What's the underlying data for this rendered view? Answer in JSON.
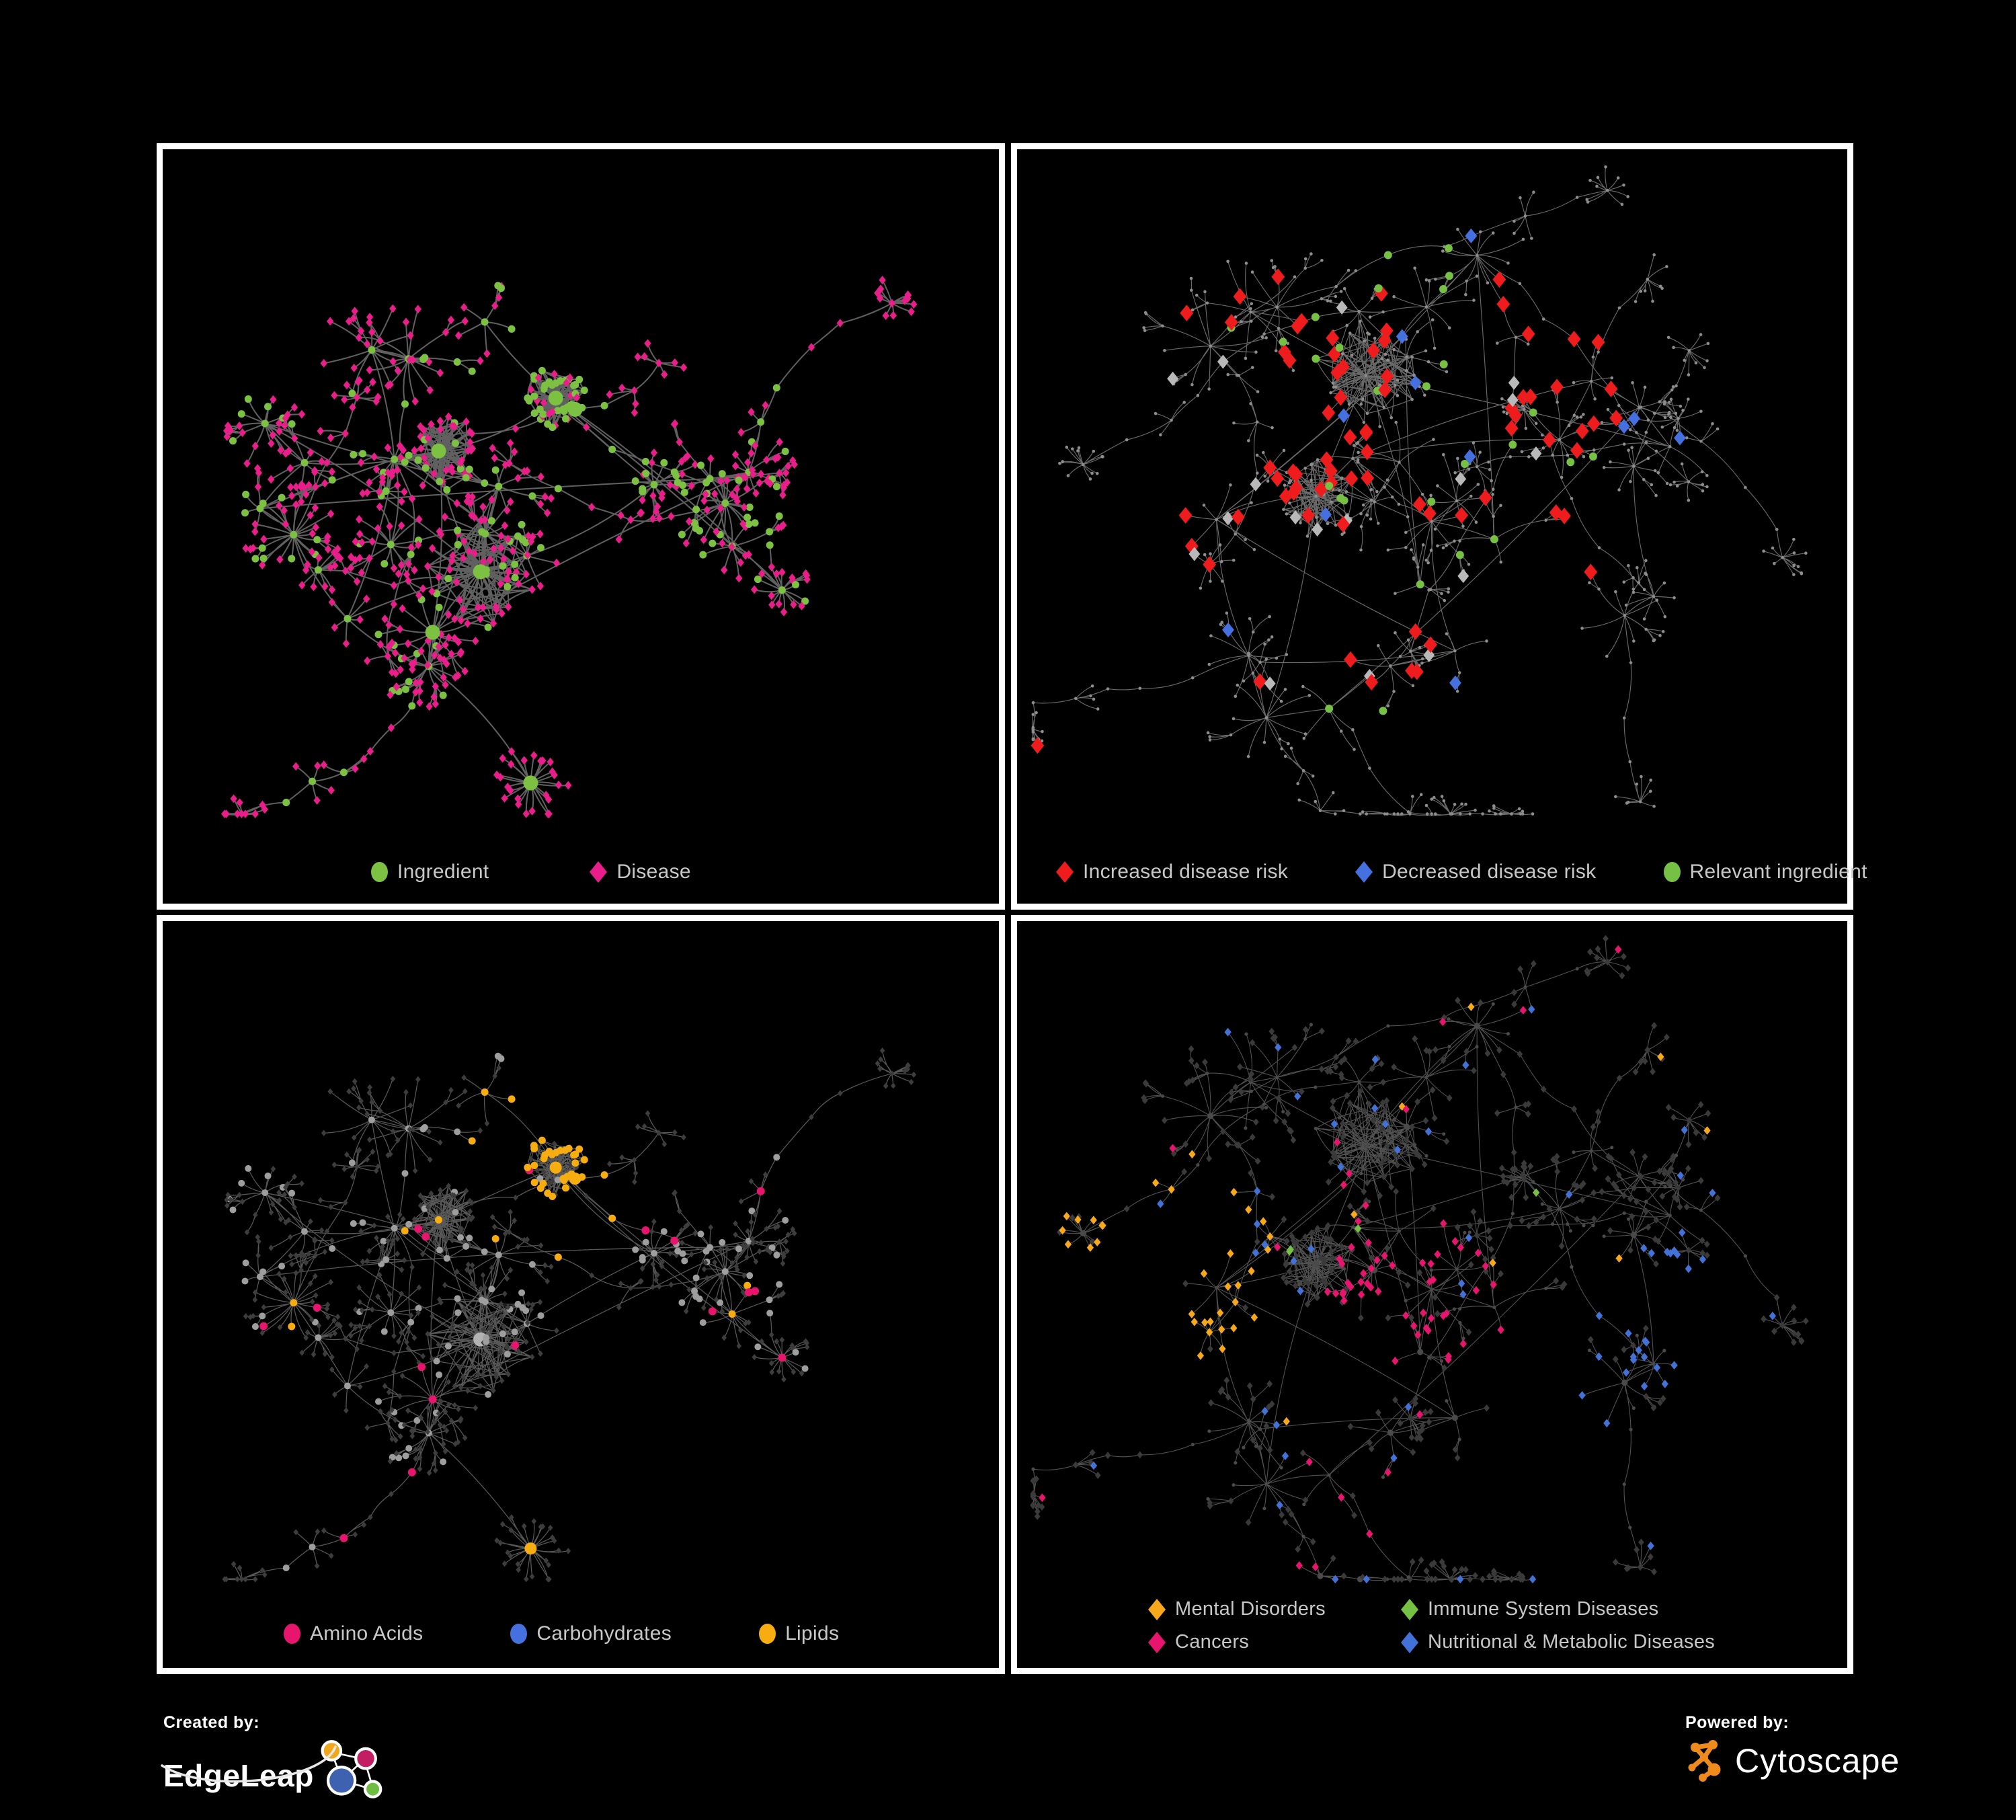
{
  "figure": {
    "background": "#000000",
    "panel_border_color": "#ffffff",
    "legend_text_color": "#c8c8c8"
  },
  "panels": [
    {
      "key": "ingredient-disease",
      "layout": "A",
      "style": "p1",
      "legend_items": [
        {
          "shape": "circle",
          "color": "#7cc142",
          "label": "Ingredient"
        },
        {
          "shape": "diamond",
          "color": "#e91e8a",
          "label": "Disease"
        }
      ]
    },
    {
      "key": "disease-risk",
      "layout": "B",
      "style": "p2",
      "legend_items": [
        {
          "shape": "diamond",
          "color": "#ee1c1c",
          "label": "Increased disease risk"
        },
        {
          "shape": "diamond",
          "color": "#4470e0",
          "label": "Decreased disease risk"
        },
        {
          "shape": "circle",
          "color": "#76c043",
          "label": "Relevant ingredient"
        }
      ]
    },
    {
      "key": "macronutrient-classes",
      "layout": "A",
      "style": "p3",
      "legend_items": [
        {
          "shape": "circle",
          "color": "#e8156e",
          "label": "Amino Acids"
        },
        {
          "shape": "circle",
          "color": "#4470e0",
          "label": "Carbohydrates"
        },
        {
          "shape": "circle",
          "color": "#f7ac10",
          "label": "Lipids"
        }
      ]
    },
    {
      "key": "disease-classes",
      "layout": "B",
      "style": "p4",
      "legend_items": [
        {
          "shape": "diamond",
          "color": "#f7a81b",
          "label": "Mental Disorders"
        },
        {
          "shape": "diamond",
          "color": "#76c043",
          "label": "Immune System Diseases"
        },
        {
          "shape": "diamond",
          "color": "#e8156e",
          "label": "Cancers"
        },
        {
          "shape": "diamond",
          "color": "#4272d8",
          "label": "Nutritional & Metabolic Diseases"
        }
      ]
    }
  ],
  "styles": {
    "p1": {
      "edge": {
        "c": "#6a6a6a",
        "w": 2.0,
        "o": 0.9
      },
      "ing": {
        "c": "#7cc142",
        "r": 5.5,
        "rBig": 11
      },
      "dis": {
        "c": "#e91e8a",
        "s": 5.2
      }
    },
    "p2": {
      "edge": {
        "c": "#7b7b7b",
        "w": 1.15,
        "o": 0.85
      },
      "dot": {
        "c": "#8d8d8d",
        "r": 2.3
      },
      "green": {
        "c": "#76c043",
        "r": 6,
        "frac": 0.26
      },
      "red": {
        "c": "#ee1c1c",
        "s": 10,
        "frac": 0.17,
        "scatter": 0.012
      },
      "silver": {
        "c": "#b9b9b9",
        "s": 8.5,
        "frac": 0.035
      },
      "blue": {
        "c": "#4470e0",
        "s": 9,
        "frac": 0.028,
        "scatter": 0.01
      }
    },
    "p3": {
      "edge": {
        "c": "#a0a0a0",
        "w": 1.25,
        "o": 0.55
      },
      "dis": {
        "c": "#3d3d3d",
        "s": 3.8
      },
      "ing": {
        "c": "#9e9e9e",
        "cBig": "#b3b3b3",
        "r": 5,
        "rBig": 10.5
      },
      "lipid": {
        "c": "#f7ac10",
        "r": 5.5,
        "rBig": 9,
        "zoneFrac": 0.8,
        "scatter": 0.05
      },
      "amino": {
        "c": "#e8156e",
        "r": 6,
        "scatter": 0.055
      },
      "carb": {
        "c": "#4470e0",
        "r": 5.5,
        "scatter": 0.05
      }
    },
    "p4": {
      "edge": {
        "c": "#a2a2a2",
        "w": 1.1,
        "o": 0.5
      },
      "ing": {
        "c": "#4a4a4a",
        "r": 2.6,
        "rBig": 4.6
      },
      "dis": {
        "c": "#3a3a3a",
        "s": 4.4
      },
      "mental": {
        "c": "#f7a81b",
        "s": 5.2,
        "zoneFrac": 0.8,
        "scatter": 0.02
      },
      "cancer": {
        "c": "#e8156e",
        "s": 5.2,
        "zoneFrac": 0.7,
        "scatter": 0.03
      },
      "metab": {
        "c": "#4272d8",
        "s": 5.2,
        "zoneFrac": 0.7,
        "scatter": 0.07
      },
      "immune": {
        "c": "#76c043",
        "s": 5.2,
        "scatter": 0.015
      }
    }
  },
  "network_seeds": {
    "layoutA": 20230142,
    "layoutB": 911731,
    "styleSeeds": [
      7,
      11,
      13,
      17
    ]
  },
  "footer": {
    "created_by_label": "Created by:",
    "left_brand": "EdgeLeap",
    "powered_by_label": "Powered by:",
    "right_brand": "Cytoscape",
    "edgeleap_logo_colors": {
      "blue": "#3e61b0",
      "orange": "#f2a71b",
      "magenta": "#c21f63",
      "green": "#6fbe44",
      "outline": "#ffffff",
      "swoosh": "#e8e8e8"
    },
    "cytoscape_logo_color": "#ef8b1d"
  }
}
